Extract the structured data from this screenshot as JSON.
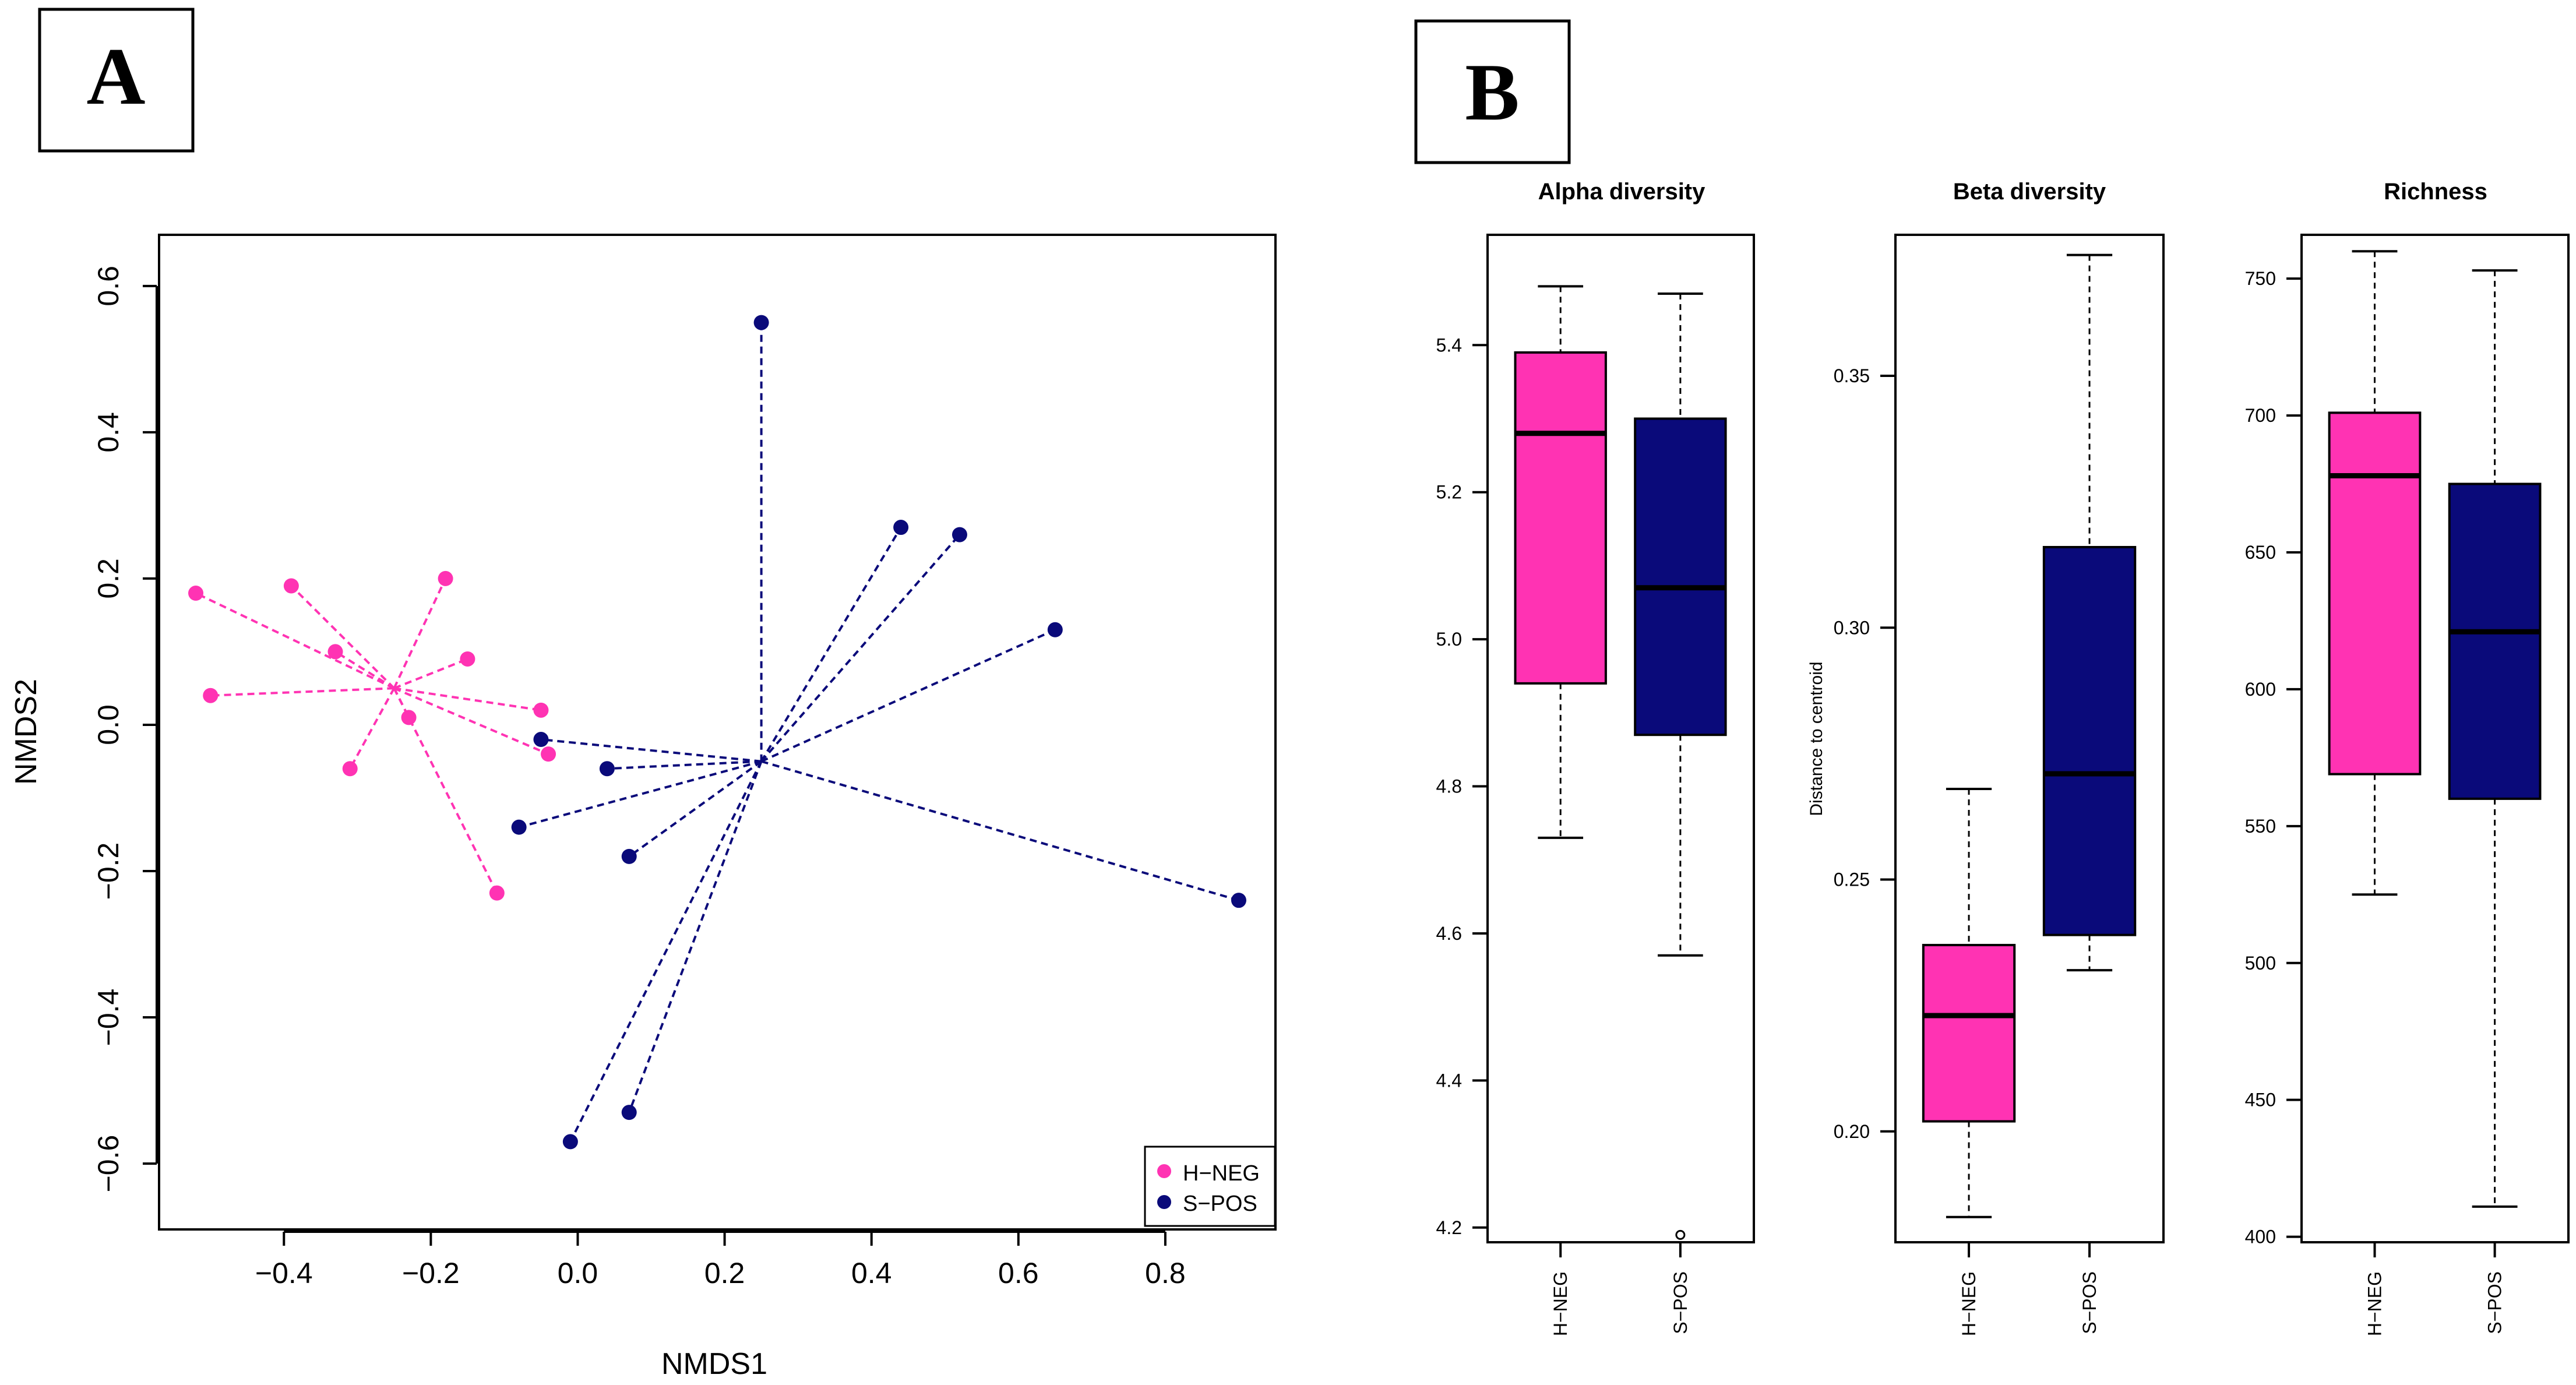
{
  "panels": {
    "a_label": "A",
    "b_label": "B"
  },
  "colors": {
    "h_neg": "#FF33B3",
    "s_pos": "#0A0A7A",
    "axis": "#000000"
  },
  "chart_data": [
    {
      "type": "scatter",
      "id": "nmds",
      "title": "",
      "xlabel": "NMDS1",
      "ylabel": "NMDS2",
      "xlim": [
        -0.57,
        0.95
      ],
      "ylim": [
        -0.69,
        0.67
      ],
      "xticks": [
        -0.4,
        -0.2,
        0.0,
        0.2,
        0.4,
        0.6,
        0.8
      ],
      "xtick_labels": [
        "−0.4",
        "−0.2",
        "0.0",
        "0.2",
        "0.4",
        "0.6",
        "0.8"
      ],
      "yticks": [
        -0.6,
        -0.4,
        -0.2,
        0.0,
        0.2,
        0.4,
        0.6
      ],
      "ytick_labels": [
        "−0.6",
        "−0.4",
        "−0.2",
        "0.0",
        "0.2",
        "0.4",
        "0.6"
      ],
      "legend": [
        "H−NEG",
        "S−POS"
      ],
      "legend_position": "bottom-right",
      "series": [
        {
          "name": "H−NEG",
          "centroid": [
            -0.25,
            0.05
          ],
          "points": [
            [
              -0.52,
              0.18
            ],
            [
              -0.39,
              0.19
            ],
            [
              -0.18,
              0.2
            ],
            [
              -0.33,
              0.1
            ],
            [
              -0.15,
              0.09
            ],
            [
              -0.5,
              0.04
            ],
            [
              -0.05,
              0.02
            ],
            [
              -0.23,
              0.01
            ],
            [
              -0.04,
              -0.04
            ],
            [
              -0.31,
              -0.06
            ],
            [
              -0.11,
              -0.23
            ]
          ]
        },
        {
          "name": "S−POS",
          "centroid": [
            0.25,
            -0.05
          ],
          "points": [
            [
              0.25,
              0.55
            ],
            [
              0.44,
              0.27
            ],
            [
              0.52,
              0.26
            ],
            [
              0.65,
              0.13
            ],
            [
              -0.05,
              -0.02
            ],
            [
              0.04,
              -0.06
            ],
            [
              -0.08,
              -0.14
            ],
            [
              0.07,
              -0.18
            ],
            [
              0.9,
              -0.24
            ],
            [
              0.07,
              -0.53
            ],
            [
              -0.01,
              -0.57
            ]
          ]
        }
      ]
    },
    {
      "type": "box",
      "id": "alpha",
      "title": "Alpha diversity",
      "ylabel": "",
      "ylim": [
        4.18,
        5.55
      ],
      "yticks": [
        4.2,
        4.4,
        4.6,
        4.8,
        5.0,
        5.2,
        5.4
      ],
      "ytick_labels": [
        "4.2",
        "4.4",
        "4.6",
        "4.8",
        "5.0",
        "5.2",
        "5.4"
      ],
      "categories": [
        "H−NEG",
        "S−POS"
      ],
      "boxes": [
        {
          "min": 4.73,
          "q1": 4.94,
          "median": 5.28,
          "q3": 5.39,
          "max": 5.48,
          "outliers": []
        },
        {
          "min": 4.57,
          "q1": 4.87,
          "median": 5.07,
          "q3": 5.3,
          "max": 5.47,
          "outliers": [
            4.19
          ]
        }
      ]
    },
    {
      "type": "box",
      "id": "beta",
      "title": "Beta diversity",
      "ylabel": "Distance to centroid",
      "ylim": [
        0.178,
        0.378
      ],
      "yticks": [
        0.2,
        0.25,
        0.3,
        0.35
      ],
      "ytick_labels": [
        "0.20",
        "0.25",
        "0.30",
        "0.35"
      ],
      "categories": [
        "H−NEG",
        "S−POS"
      ],
      "boxes": [
        {
          "min": 0.183,
          "q1": 0.202,
          "median": 0.223,
          "q3": 0.237,
          "max": 0.268,
          "outliers": []
        },
        {
          "min": 0.232,
          "q1": 0.239,
          "median": 0.271,
          "q3": 0.316,
          "max": 0.374,
          "outliers": []
        }
      ]
    },
    {
      "type": "box",
      "id": "richness",
      "title": "Richness",
      "ylabel": "",
      "ylim": [
        398,
        766
      ],
      "yticks": [
        400,
        450,
        500,
        550,
        600,
        650,
        700,
        750
      ],
      "ytick_labels": [
        "400",
        "450",
        "500",
        "550",
        "600",
        "650",
        "700",
        "750"
      ],
      "categories": [
        "H−NEG",
        "S−POS"
      ],
      "boxes": [
        {
          "min": 525,
          "q1": 569,
          "median": 678,
          "q3": 701,
          "max": 760,
          "outliers": []
        },
        {
          "min": 411,
          "q1": 560,
          "median": 621,
          "q3": 675,
          "max": 753,
          "outliers": []
        }
      ]
    }
  ]
}
